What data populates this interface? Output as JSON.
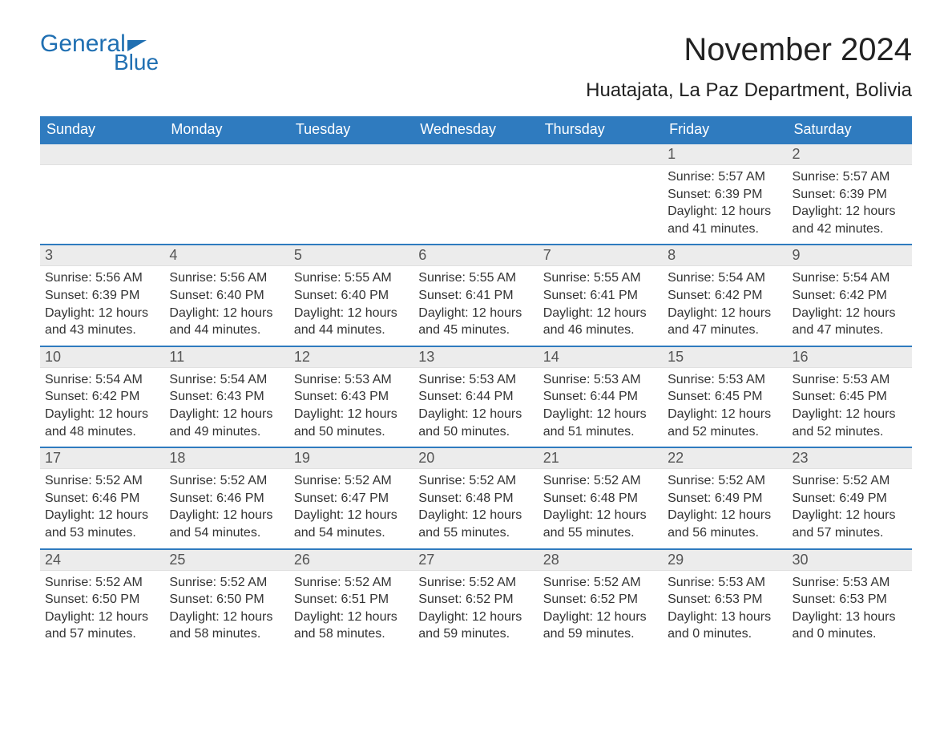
{
  "brand": {
    "line1": "General",
    "line2": "Blue"
  },
  "title": "November 2024",
  "location": "Huatajata, La Paz Department, Bolivia",
  "colors": {
    "header_blue": "#2f7bbf",
    "logo_blue": "#1f6fb2",
    "day_bar_gray": "#ececec",
    "text": "#333333",
    "background": "#ffffff"
  },
  "weekdays": [
    "Sunday",
    "Monday",
    "Tuesday",
    "Wednesday",
    "Thursday",
    "Friday",
    "Saturday"
  ],
  "weeks": [
    [
      {
        "empty": true
      },
      {
        "empty": true
      },
      {
        "empty": true
      },
      {
        "empty": true
      },
      {
        "empty": true
      },
      {
        "day": "1",
        "sunrise": "Sunrise: 5:57 AM",
        "sunset": "Sunset: 6:39 PM",
        "daylight": "Daylight: 12 hours and 41 minutes."
      },
      {
        "day": "2",
        "sunrise": "Sunrise: 5:57 AM",
        "sunset": "Sunset: 6:39 PM",
        "daylight": "Daylight: 12 hours and 42 minutes."
      }
    ],
    [
      {
        "day": "3",
        "sunrise": "Sunrise: 5:56 AM",
        "sunset": "Sunset: 6:39 PM",
        "daylight": "Daylight: 12 hours and 43 minutes."
      },
      {
        "day": "4",
        "sunrise": "Sunrise: 5:56 AM",
        "sunset": "Sunset: 6:40 PM",
        "daylight": "Daylight: 12 hours and 44 minutes."
      },
      {
        "day": "5",
        "sunrise": "Sunrise: 5:55 AM",
        "sunset": "Sunset: 6:40 PM",
        "daylight": "Daylight: 12 hours and 44 minutes."
      },
      {
        "day": "6",
        "sunrise": "Sunrise: 5:55 AM",
        "sunset": "Sunset: 6:41 PM",
        "daylight": "Daylight: 12 hours and 45 minutes."
      },
      {
        "day": "7",
        "sunrise": "Sunrise: 5:55 AM",
        "sunset": "Sunset: 6:41 PM",
        "daylight": "Daylight: 12 hours and 46 minutes."
      },
      {
        "day": "8",
        "sunrise": "Sunrise: 5:54 AM",
        "sunset": "Sunset: 6:42 PM",
        "daylight": "Daylight: 12 hours and 47 minutes."
      },
      {
        "day": "9",
        "sunrise": "Sunrise: 5:54 AM",
        "sunset": "Sunset: 6:42 PM",
        "daylight": "Daylight: 12 hours and 47 minutes."
      }
    ],
    [
      {
        "day": "10",
        "sunrise": "Sunrise: 5:54 AM",
        "sunset": "Sunset: 6:42 PM",
        "daylight": "Daylight: 12 hours and 48 minutes."
      },
      {
        "day": "11",
        "sunrise": "Sunrise: 5:54 AM",
        "sunset": "Sunset: 6:43 PM",
        "daylight": "Daylight: 12 hours and 49 minutes."
      },
      {
        "day": "12",
        "sunrise": "Sunrise: 5:53 AM",
        "sunset": "Sunset: 6:43 PM",
        "daylight": "Daylight: 12 hours and 50 minutes."
      },
      {
        "day": "13",
        "sunrise": "Sunrise: 5:53 AM",
        "sunset": "Sunset: 6:44 PM",
        "daylight": "Daylight: 12 hours and 50 minutes."
      },
      {
        "day": "14",
        "sunrise": "Sunrise: 5:53 AM",
        "sunset": "Sunset: 6:44 PM",
        "daylight": "Daylight: 12 hours and 51 minutes."
      },
      {
        "day": "15",
        "sunrise": "Sunrise: 5:53 AM",
        "sunset": "Sunset: 6:45 PM",
        "daylight": "Daylight: 12 hours and 52 minutes."
      },
      {
        "day": "16",
        "sunrise": "Sunrise: 5:53 AM",
        "sunset": "Sunset: 6:45 PM",
        "daylight": "Daylight: 12 hours and 52 minutes."
      }
    ],
    [
      {
        "day": "17",
        "sunrise": "Sunrise: 5:52 AM",
        "sunset": "Sunset: 6:46 PM",
        "daylight": "Daylight: 12 hours and 53 minutes."
      },
      {
        "day": "18",
        "sunrise": "Sunrise: 5:52 AM",
        "sunset": "Sunset: 6:46 PM",
        "daylight": "Daylight: 12 hours and 54 minutes."
      },
      {
        "day": "19",
        "sunrise": "Sunrise: 5:52 AM",
        "sunset": "Sunset: 6:47 PM",
        "daylight": "Daylight: 12 hours and 54 minutes."
      },
      {
        "day": "20",
        "sunrise": "Sunrise: 5:52 AM",
        "sunset": "Sunset: 6:48 PM",
        "daylight": "Daylight: 12 hours and 55 minutes."
      },
      {
        "day": "21",
        "sunrise": "Sunrise: 5:52 AM",
        "sunset": "Sunset: 6:48 PM",
        "daylight": "Daylight: 12 hours and 55 minutes."
      },
      {
        "day": "22",
        "sunrise": "Sunrise: 5:52 AM",
        "sunset": "Sunset: 6:49 PM",
        "daylight": "Daylight: 12 hours and 56 minutes."
      },
      {
        "day": "23",
        "sunrise": "Sunrise: 5:52 AM",
        "sunset": "Sunset: 6:49 PM",
        "daylight": "Daylight: 12 hours and 57 minutes."
      }
    ],
    [
      {
        "day": "24",
        "sunrise": "Sunrise: 5:52 AM",
        "sunset": "Sunset: 6:50 PM",
        "daylight": "Daylight: 12 hours and 57 minutes."
      },
      {
        "day": "25",
        "sunrise": "Sunrise: 5:52 AM",
        "sunset": "Sunset: 6:50 PM",
        "daylight": "Daylight: 12 hours and 58 minutes."
      },
      {
        "day": "26",
        "sunrise": "Sunrise: 5:52 AM",
        "sunset": "Sunset: 6:51 PM",
        "daylight": "Daylight: 12 hours and 58 minutes."
      },
      {
        "day": "27",
        "sunrise": "Sunrise: 5:52 AM",
        "sunset": "Sunset: 6:52 PM",
        "daylight": "Daylight: 12 hours and 59 minutes."
      },
      {
        "day": "28",
        "sunrise": "Sunrise: 5:52 AM",
        "sunset": "Sunset: 6:52 PM",
        "daylight": "Daylight: 12 hours and 59 minutes."
      },
      {
        "day": "29",
        "sunrise": "Sunrise: 5:53 AM",
        "sunset": "Sunset: 6:53 PM",
        "daylight": "Daylight: 13 hours and 0 minutes."
      },
      {
        "day": "30",
        "sunrise": "Sunrise: 5:53 AM",
        "sunset": "Sunset: 6:53 PM",
        "daylight": "Daylight: 13 hours and 0 minutes."
      }
    ]
  ]
}
